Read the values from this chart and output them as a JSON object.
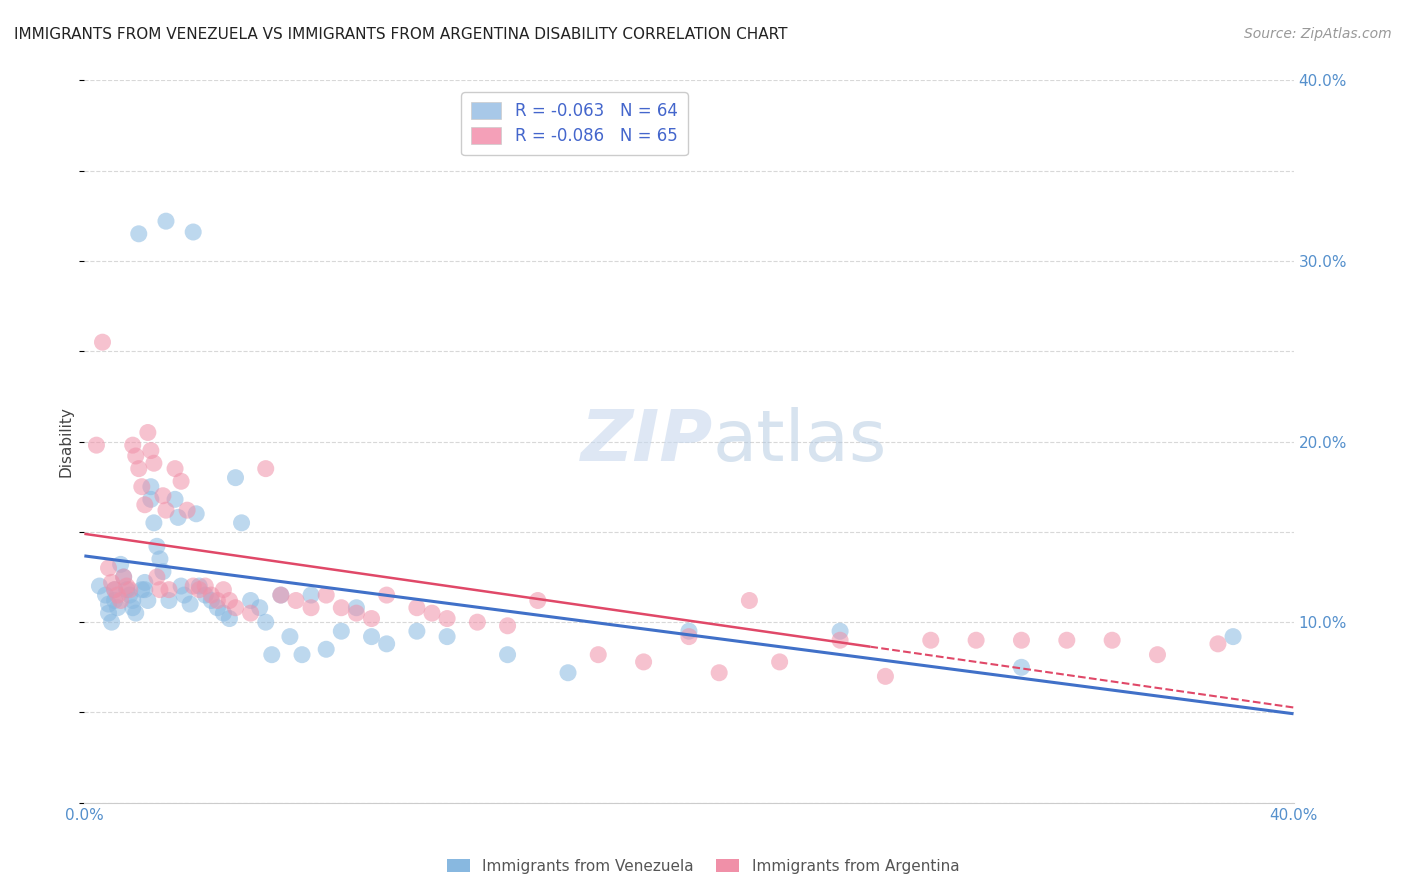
{
  "title": "IMMIGRANTS FROM VENEZUELA VS IMMIGRANTS FROM ARGENTINA DISABILITY CORRELATION CHART",
  "source": "Source: ZipAtlas.com",
  "ylabel": "Disability",
  "xlim": [
    0.0,
    0.4
  ],
  "ylim": [
    0.0,
    0.4
  ],
  "yticks": [
    0.1,
    0.2,
    0.3,
    0.4
  ],
  "ytick_labels": [
    "10.0%",
    "20.0%",
    "30.0%",
    "40.0%"
  ],
  "xticks": [
    0.0,
    0.1,
    0.2,
    0.3,
    0.4
  ],
  "xtick_labels": [
    "0.0%",
    "",
    "",
    "",
    "40.0%"
  ],
  "legend_label1": "R = -0.063   N = 64",
  "legend_label2": "R = -0.086   N = 65",
  "legend_color1": "#a8c8e8",
  "legend_color2": "#f4a0b8",
  "watermark": "ZIPatlas",
  "background_color": "#ffffff",
  "grid_color": "#d8d8d8",
  "series1_color": "#88b8e0",
  "series2_color": "#f090a8",
  "trendline1_color": "#4070c8",
  "trendline2_color": "#e04868",
  "bottom_legend1": "Immigrants from Venezuela",
  "bottom_legend2": "Immigrants from Argentina",
  "venezuela_x": [
    0.005,
    0.007,
    0.008,
    0.008,
    0.009,
    0.01,
    0.01,
    0.011,
    0.012,
    0.013,
    0.014,
    0.015,
    0.016,
    0.016,
    0.017,
    0.018,
    0.019,
    0.02,
    0.02,
    0.021,
    0.022,
    0.022,
    0.023,
    0.024,
    0.025,
    0.026,
    0.027,
    0.028,
    0.03,
    0.031,
    0.032,
    0.033,
    0.035,
    0.036,
    0.037,
    0.038,
    0.04,
    0.042,
    0.044,
    0.046,
    0.048,
    0.05,
    0.052,
    0.055,
    0.058,
    0.06,
    0.062,
    0.065,
    0.068,
    0.072,
    0.075,
    0.08,
    0.085,
    0.09,
    0.095,
    0.1,
    0.11,
    0.12,
    0.14,
    0.16,
    0.2,
    0.25,
    0.31,
    0.38
  ],
  "venezuela_y": [
    0.12,
    0.115,
    0.11,
    0.105,
    0.1,
    0.118,
    0.112,
    0.108,
    0.132,
    0.125,
    0.118,
    0.115,
    0.112,
    0.108,
    0.105,
    0.315,
    0.118,
    0.122,
    0.118,
    0.112,
    0.175,
    0.168,
    0.155,
    0.142,
    0.135,
    0.128,
    0.322,
    0.112,
    0.168,
    0.158,
    0.12,
    0.115,
    0.11,
    0.316,
    0.16,
    0.12,
    0.115,
    0.112,
    0.108,
    0.105,
    0.102,
    0.18,
    0.155,
    0.112,
    0.108,
    0.1,
    0.082,
    0.115,
    0.092,
    0.082,
    0.115,
    0.085,
    0.095,
    0.108,
    0.092,
    0.088,
    0.095,
    0.092,
    0.082,
    0.072,
    0.095,
    0.095,
    0.075,
    0.092
  ],
  "argentina_x": [
    0.004,
    0.006,
    0.008,
    0.009,
    0.01,
    0.011,
    0.012,
    0.013,
    0.014,
    0.015,
    0.016,
    0.017,
    0.018,
    0.019,
    0.02,
    0.021,
    0.022,
    0.023,
    0.024,
    0.025,
    0.026,
    0.027,
    0.028,
    0.03,
    0.032,
    0.034,
    0.036,
    0.038,
    0.04,
    0.042,
    0.044,
    0.046,
    0.048,
    0.05,
    0.055,
    0.06,
    0.065,
    0.07,
    0.075,
    0.08,
    0.085,
    0.09,
    0.095,
    0.1,
    0.11,
    0.115,
    0.12,
    0.13,
    0.14,
    0.15,
    0.17,
    0.185,
    0.2,
    0.21,
    0.22,
    0.23,
    0.25,
    0.265,
    0.28,
    0.295,
    0.31,
    0.325,
    0.34,
    0.355,
    0.375
  ],
  "argentina_y": [
    0.198,
    0.255,
    0.13,
    0.122,
    0.118,
    0.115,
    0.112,
    0.125,
    0.12,
    0.118,
    0.198,
    0.192,
    0.185,
    0.175,
    0.165,
    0.205,
    0.195,
    0.188,
    0.125,
    0.118,
    0.17,
    0.162,
    0.118,
    0.185,
    0.178,
    0.162,
    0.12,
    0.118,
    0.12,
    0.115,
    0.112,
    0.118,
    0.112,
    0.108,
    0.105,
    0.185,
    0.115,
    0.112,
    0.108,
    0.115,
    0.108,
    0.105,
    0.102,
    0.115,
    0.108,
    0.105,
    0.102,
    0.1,
    0.098,
    0.112,
    0.082,
    0.078,
    0.092,
    0.072,
    0.112,
    0.078,
    0.09,
    0.07,
    0.09,
    0.09,
    0.09,
    0.09,
    0.09,
    0.082,
    0.088
  ]
}
